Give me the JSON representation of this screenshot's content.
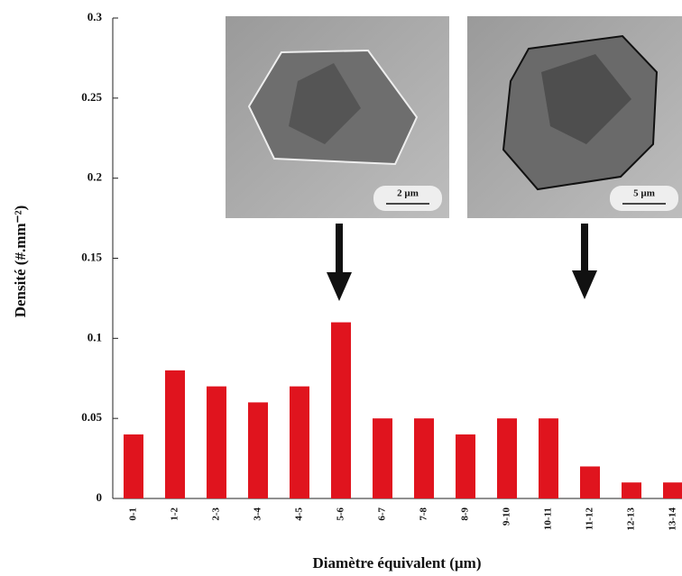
{
  "chart_data": {
    "type": "bar",
    "y_label": "Densité (#.mm⁻²)",
    "x_label": "Diamètre équivalent (µm)",
    "categories": [
      "0-1",
      "1-2",
      "2-3",
      "3-4",
      "4-5",
      "5-6",
      "6-7",
      "7-8",
      "8-9",
      "9-10",
      "10-11",
      "11-12",
      "12-13",
      "13-14"
    ],
    "values": [
      0.04,
      0.08,
      0.07,
      0.06,
      0.07,
      0.11,
      0.05,
      0.05,
      0.04,
      0.05,
      0.05,
      0.02,
      0.01,
      0.01
    ],
    "color": "#e0141e",
    "ylim": [
      0,
      0.3
    ],
    "yticks": [
      0,
      0.05,
      0.1,
      0.15,
      0.2,
      0.25,
      0.3
    ],
    "grid": false,
    "insets": [
      {
        "scale_label": "2 µm"
      },
      {
        "scale_label": "5 µm"
      }
    ]
  }
}
